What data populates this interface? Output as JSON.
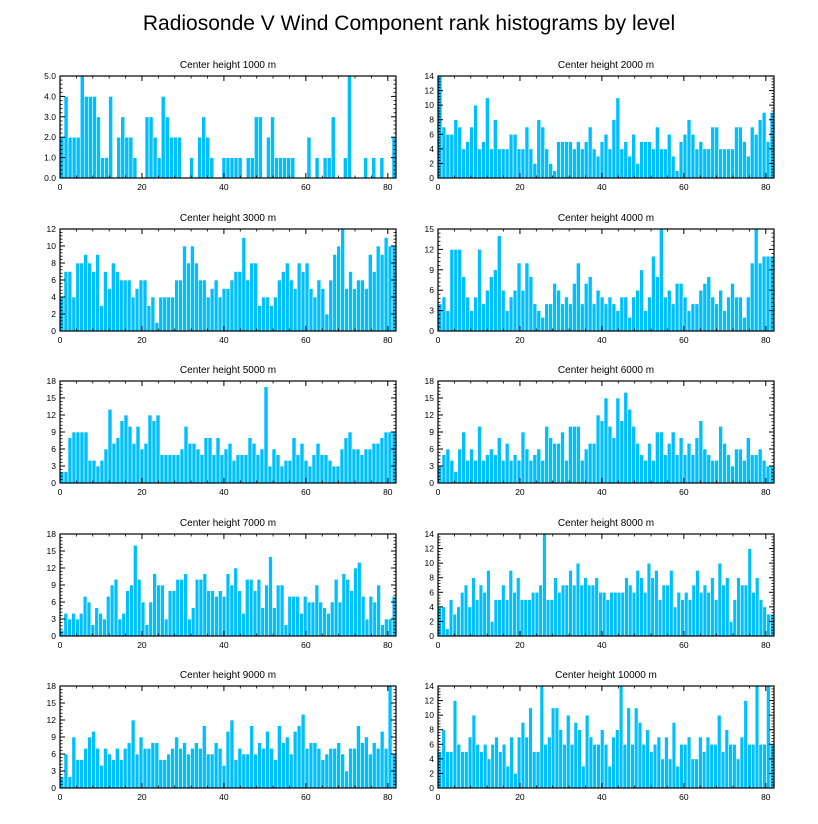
{
  "figure": {
    "title": "Radiosonde V Wind Component rank histograms by level"
  },
  "colors": {
    "bar": "#00bfff",
    "bar_edge": "#ffffff",
    "axis": "#000000"
  },
  "chart_data": [
    {
      "type": "bar",
      "title": "Center height 1000 m",
      "ylim": [
        0,
        5
      ],
      "yticks": [
        "0.0",
        "1.0",
        "2.0",
        "3.0",
        "4.0",
        "5.0"
      ],
      "ytick_values": [
        0,
        1,
        2,
        3,
        4,
        5
      ],
      "xlim": [
        0,
        82
      ],
      "xticks": [
        0,
        20,
        40,
        60,
        80
      ],
      "values": [
        2,
        4,
        2,
        2,
        2,
        5,
        4,
        4,
        4,
        3,
        1,
        1,
        4,
        0,
        2,
        3,
        2,
        2,
        1,
        0,
        0,
        3,
        3,
        2,
        1,
        4,
        3,
        2,
        2,
        2,
        0,
        0,
        1,
        0,
        2,
        3,
        2,
        1,
        0,
        0,
        1,
        1,
        1,
        1,
        1,
        0,
        1,
        1,
        3,
        3,
        0,
        2,
        3,
        1,
        1,
        1,
        1,
        1,
        0,
        0,
        0,
        2,
        0,
        1,
        0,
        1,
        1,
        3,
        0,
        0,
        1,
        5,
        0,
        0,
        0,
        1,
        0,
        1,
        0,
        1,
        0,
        0,
        2
      ]
    },
    {
      "type": "bar",
      "title": "Center height 2000 m",
      "ylim": [
        0,
        14
      ],
      "yticks": [
        "0",
        "2",
        "4",
        "6",
        "8",
        "10",
        "12",
        "14"
      ],
      "ytick_values": [
        0,
        2,
        4,
        6,
        8,
        10,
        12,
        14
      ],
      "xlim": [
        0,
        82
      ],
      "xticks": [
        0,
        20,
        40,
        60,
        80
      ],
      "values": [
        14,
        7,
        6,
        6,
        8,
        7,
        4,
        5,
        7,
        10,
        4,
        5,
        11,
        4,
        8,
        4,
        4,
        4,
        6,
        6,
        4,
        4,
        7,
        4,
        2,
        8,
        7,
        4,
        2,
        1,
        5,
        5,
        5,
        5,
        4,
        5,
        4,
        5,
        7,
        4,
        3,
        5,
        6,
        4,
        8,
        11,
        4,
        5,
        3,
        6,
        2,
        5,
        5,
        5,
        4,
        7,
        4,
        4,
        6,
        3,
        1,
        5,
        6,
        8,
        6,
        4,
        5,
        4,
        4,
        7,
        7,
        4,
        4,
        4,
        4,
        7,
        7,
        5,
        3,
        7,
        6,
        8,
        9,
        5,
        9
      ]
    },
    {
      "type": "bar",
      "title": "Center height 3000 m",
      "ylim": [
        0,
        12
      ],
      "yticks": [
        "0",
        "2",
        "4",
        "6",
        "8",
        "10",
        "12"
      ],
      "ytick_values": [
        0,
        2,
        4,
        6,
        8,
        10,
        12
      ],
      "xlim": [
        0,
        82
      ],
      "xticks": [
        0,
        20,
        40,
        60,
        80
      ],
      "values": [
        4,
        7,
        7,
        4,
        8,
        8,
        9,
        8,
        7,
        9,
        3,
        7,
        5,
        8,
        7,
        6,
        6,
        6,
        4,
        5,
        6,
        6,
        3,
        4,
        1,
        4,
        4,
        4,
        4,
        6,
        6,
        10,
        8,
        10,
        8,
        6,
        6,
        4,
        5,
        6,
        4,
        5,
        5,
        6,
        7,
        7,
        11,
        6,
        8,
        8,
        3,
        4,
        4,
        3,
        4,
        6,
        7,
        8,
        6,
        5,
        8,
        7,
        8,
        5,
        4,
        6,
        5,
        2,
        6,
        9,
        10,
        12,
        5,
        7,
        5,
        6,
        6,
        5,
        9,
        7,
        10,
        9,
        11,
        10,
        10
      ]
    },
    {
      "type": "bar",
      "title": "Center height 4000 m",
      "ylim": [
        0,
        15
      ],
      "yticks": [
        "0",
        "3",
        "6",
        "9",
        "12",
        "15"
      ],
      "ytick_values": [
        0,
        3,
        6,
        9,
        12,
        15
      ],
      "xlim": [
        0,
        82
      ],
      "xticks": [
        0,
        20,
        40,
        60,
        80
      ],
      "values": [
        4,
        5,
        3,
        12,
        12,
        12,
        8,
        5,
        3,
        5,
        12,
        4,
        6,
        8,
        9,
        14,
        6,
        3,
        5,
        6,
        10,
        6,
        10,
        8,
        4,
        3,
        2,
        4,
        4,
        7,
        6,
        4,
        5,
        4,
        7,
        10,
        4,
        7,
        8,
        4,
        6,
        5,
        4,
        5,
        4,
        3,
        5,
        5,
        2,
        5,
        6,
        9,
        3,
        5,
        11,
        8,
        15,
        5,
        6,
        4,
        7,
        7,
        5,
        3,
        4,
        4,
        6,
        7,
        8,
        5,
        4,
        6,
        3,
        5,
        7,
        5,
        5,
        2,
        5,
        10,
        15,
        10,
        11,
        11,
        11
      ]
    },
    {
      "type": "bar",
      "title": "Center height 5000 m",
      "ylim": [
        0,
        18
      ],
      "yticks": [
        "0",
        "3",
        "6",
        "9",
        "12",
        "15",
        "18"
      ],
      "ytick_values": [
        0,
        3,
        6,
        9,
        12,
        15,
        18
      ],
      "xlim": [
        0,
        82
      ],
      "xticks": [
        0,
        20,
        40,
        60,
        80
      ],
      "values": [
        2,
        2,
        8,
        9,
        9,
        9,
        9,
        4,
        4,
        3,
        4,
        6,
        13,
        7,
        8,
        11,
        12,
        10,
        7,
        10,
        6,
        7,
        12,
        11,
        12,
        5,
        5,
        5,
        5,
        5,
        6,
        10,
        7,
        7,
        6,
        5,
        8,
        8,
        5,
        8,
        5,
        6,
        7,
        4,
        5,
        5,
        5,
        8,
        7,
        5,
        6,
        17,
        3,
        6,
        5,
        3,
        4,
        4,
        8,
        5,
        7,
        4,
        3,
        5,
        7,
        5,
        5,
        4,
        3,
        3,
        6,
        8,
        9,
        6,
        6,
        5,
        6,
        6,
        7,
        7,
        8,
        9,
        9,
        9
      ]
    },
    {
      "type": "bar",
      "title": "Center height 6000 m",
      "ylim": [
        0,
        18
      ],
      "yticks": [
        "0",
        "3",
        "6",
        "9",
        "12",
        "15",
        "18"
      ],
      "ytick_values": [
        0,
        3,
        6,
        9,
        12,
        15,
        18
      ],
      "xlim": [
        0,
        82
      ],
      "xticks": [
        0,
        20,
        40,
        60,
        80
      ],
      "values": [
        3,
        5,
        6,
        4,
        2,
        6,
        9,
        4,
        6,
        4,
        10,
        4,
        5,
        6,
        5,
        8,
        4,
        7,
        4,
        5,
        4,
        9,
        6,
        4,
        5,
        6,
        4,
        10,
        8,
        7,
        7,
        9,
        4,
        10,
        10,
        10,
        4,
        6,
        7,
        7,
        12,
        11,
        15,
        10,
        8,
        15,
        11,
        16,
        13,
        10,
        7,
        5,
        4,
        7,
        4,
        9,
        9,
        5,
        7,
        9,
        5,
        8,
        5,
        7,
        5,
        8,
        11,
        6,
        5,
        4,
        4,
        10,
        7,
        5,
        3,
        6,
        6,
        4,
        8,
        5,
        5,
        6,
        4,
        3,
        3
      ]
    },
    {
      "type": "bar",
      "title": "Center height 7000 m",
      "ylim": [
        0,
        18
      ],
      "yticks": [
        "0",
        "3",
        "6",
        "9",
        "12",
        "15",
        "18"
      ],
      "ytick_values": [
        0,
        3,
        6,
        9,
        12,
        15,
        18
      ],
      "xlim": [
        0,
        82
      ],
      "xticks": [
        0,
        20,
        40,
        60,
        80
      ],
      "values": [
        1,
        4,
        3,
        4,
        3,
        4,
        7,
        6,
        2,
        5,
        4,
        3,
        7,
        9,
        10,
        3,
        4,
        8,
        9,
        16,
        10,
        6,
        2,
        6,
        11,
        9,
        9,
        3,
        8,
        8,
        10,
        10,
        11,
        3,
        5,
        10,
        10,
        11,
        8,
        8,
        7,
        8,
        7,
        11,
        9,
        12,
        8,
        4,
        10,
        10,
        8,
        10,
        5,
        9,
        14,
        5,
        9,
        9,
        2,
        7,
        7,
        7,
        4,
        7,
        6,
        6,
        9,
        6,
        5,
        4,
        6,
        10,
        6,
        11,
        10,
        8,
        12,
        13,
        7,
        3,
        7,
        6,
        9,
        2,
        3,
        3,
        7
      ]
    },
    {
      "type": "bar",
      "title": "Center height 8000 m",
      "ylim": [
        0,
        14
      ],
      "yticks": [
        "0",
        "2",
        "4",
        "6",
        "8",
        "10",
        "12",
        "14"
      ],
      "ytick_values": [
        0,
        2,
        4,
        6,
        8,
        10,
        12,
        14
      ],
      "xlim": [
        0,
        82
      ],
      "xticks": [
        0,
        20,
        40,
        60,
        80
      ],
      "values": [
        4,
        4,
        1,
        5,
        3,
        4,
        6,
        7,
        4,
        8,
        5,
        7,
        6,
        9,
        2,
        5,
        5,
        7,
        5,
        9,
        6,
        8,
        5,
        5,
        5,
        6,
        6,
        7,
        14,
        5,
        5,
        8,
        6,
        7,
        7,
        9,
        7,
        10,
        7,
        8,
        7,
        7,
        8,
        6,
        6,
        5,
        6,
        6,
        6,
        6,
        8,
        7,
        6,
        9,
        8,
        6,
        10,
        8,
        9,
        5,
        7,
        7,
        9,
        4,
        6,
        5,
        6,
        5,
        7,
        9,
        6,
        7,
        6,
        8,
        5,
        10,
        7,
        8,
        2,
        5,
        8,
        7,
        7,
        12,
        6,
        8,
        5,
        4,
        3,
        3
      ]
    },
    {
      "type": "bar",
      "title": "Center height 9000 m",
      "ylim": [
        0,
        18
      ],
      "yticks": [
        "0",
        "3",
        "6",
        "9",
        "12",
        "15",
        "18"
      ],
      "ytick_values": [
        0,
        3,
        6,
        9,
        12,
        15,
        18
      ],
      "xlim": [
        0,
        82
      ],
      "xticks": [
        0,
        20,
        40,
        60,
        80
      ],
      "values": [
        2,
        6,
        2,
        9,
        5,
        5,
        7,
        9,
        10,
        7,
        4,
        7,
        6,
        5,
        7,
        5,
        7,
        8,
        12,
        6,
        9,
        7,
        7,
        8,
        8,
        5,
        5,
        6,
        7,
        9,
        7,
        8,
        6,
        7,
        8,
        7,
        11,
        6,
        6,
        8,
        7,
        4,
        10,
        12,
        5,
        7,
        6,
        6,
        11,
        6,
        8,
        7,
        10,
        7,
        5,
        11,
        8,
        9,
        6,
        10,
        11,
        13,
        7,
        8,
        8,
        7,
        5,
        6,
        7,
        7,
        8,
        6,
        3,
        7,
        7,
        11,
        8,
        9,
        6,
        8,
        7,
        10,
        7,
        18,
        6
      ]
    },
    {
      "type": "bar",
      "title": "Center height 10000 m",
      "ylim": [
        0,
        14
      ],
      "yticks": [
        "0",
        "2",
        "4",
        "6",
        "8",
        "10",
        "12",
        "14"
      ],
      "ytick_values": [
        0,
        2,
        4,
        6,
        8,
        10,
        12,
        14
      ],
      "xlim": [
        0,
        82
      ],
      "xticks": [
        0,
        20,
        40,
        60,
        80
      ],
      "values": [
        5,
        8,
        5,
        5,
        12,
        6,
        5,
        5,
        7,
        10,
        6,
        5,
        6,
        4,
        6,
        7,
        5,
        6,
        3,
        7,
        2,
        7,
        9,
        7,
        11,
        5,
        5,
        14,
        6,
        7,
        11,
        11,
        8,
        6,
        10,
        6,
        9,
        8,
        3,
        10,
        7,
        6,
        6,
        8,
        6,
        3,
        7,
        8,
        14,
        6,
        11,
        6,
        11,
        9,
        6,
        8,
        5,
        6,
        7,
        4,
        7,
        4,
        9,
        3,
        6,
        6,
        7,
        4,
        4,
        7,
        5,
        7,
        6,
        6,
        10,
        5,
        8,
        6,
        6,
        4,
        7,
        12,
        6,
        6,
        14,
        6,
        6,
        14,
        6
      ]
    }
  ]
}
